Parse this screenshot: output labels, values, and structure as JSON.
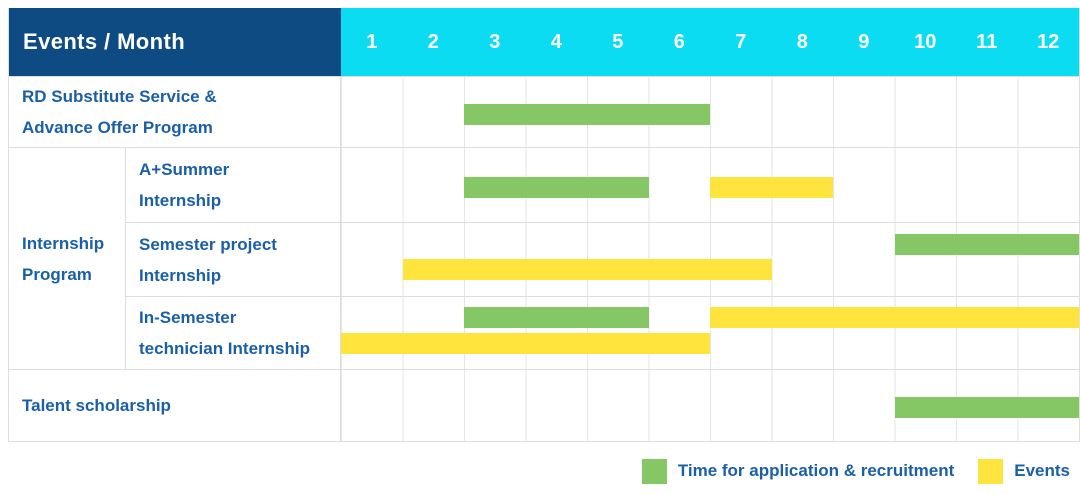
{
  "palette": {
    "header_bg": "#0D4B82",
    "month_header_bg": "#0BDCF2",
    "application_color": "#85C665",
    "event_color": "#FFE43E",
    "label_color": "#1B5FA6",
    "header_text_color": "#FFFFFF",
    "grid_line_color": "#E6E6E6",
    "border_color": "#DEDEDE"
  },
  "header": {
    "title": "Events / Month",
    "months": [
      "1",
      "2",
      "3",
      "4",
      "5",
      "6",
      "7",
      "8",
      "9",
      "10",
      "11",
      "12"
    ]
  },
  "group": {
    "label": "Internship\nProgram"
  },
  "rows": [
    {
      "label": "RD Substitute Service &\nAdvance Offer Program"
    },
    {
      "label": "A+Summer\nInternship"
    },
    {
      "label": "Semester project\nInternship"
    },
    {
      "label": "In-Semester\ntechnician Internship"
    },
    {
      "label": "Talent scholarship"
    }
  ],
  "legend": [
    {
      "kind": "application",
      "label": "Time for application & recruitment"
    },
    {
      "kind": "event",
      "label": "Events"
    }
  ],
  "chart_data": {
    "type": "bar",
    "subtype": "gantt-schedule",
    "title": "Events / Month",
    "x_label": "Month",
    "x_ticks": [
      1,
      2,
      3,
      4,
      5,
      6,
      7,
      8,
      9,
      10,
      11,
      12
    ],
    "x_range": [
      1,
      12
    ],
    "grid": true,
    "legend_position": "bottom-right",
    "rows": [
      {
        "label": "RD Substitute Service & Advance Offer Program",
        "group": null,
        "bars": [
          {
            "kind": "application",
            "start_month": 3,
            "end_month": 6,
            "line": "center"
          }
        ]
      },
      {
        "label": "A+Summer Internship",
        "group": "Internship Program",
        "bars": [
          {
            "kind": "application",
            "start_month": 3,
            "end_month": 5,
            "line": "center"
          },
          {
            "kind": "event",
            "start_month": 7,
            "end_month": 8,
            "line": "center"
          }
        ]
      },
      {
        "label": "Semester project Internship",
        "group": "Internship Program",
        "bars": [
          {
            "kind": "application",
            "start_month": 10,
            "end_month": 12,
            "line": "top"
          },
          {
            "kind": "event",
            "start_month": 2,
            "end_month": 7,
            "line": "bottom"
          }
        ]
      },
      {
        "label": "In-Semester technician Internship",
        "group": "Internship Program",
        "bars": [
          {
            "kind": "application",
            "start_month": 3,
            "end_month": 5,
            "line": "top"
          },
          {
            "kind": "event",
            "start_month": 7,
            "end_month": 12,
            "line": "top"
          },
          {
            "kind": "event",
            "start_month": 1,
            "end_month": 6,
            "line": "bottom"
          }
        ]
      },
      {
        "label": "Talent scholarship",
        "group": null,
        "bars": [
          {
            "kind": "application",
            "start_month": 10,
            "end_month": 12,
            "line": "center"
          }
        ]
      }
    ],
    "legend": [
      {
        "kind": "application",
        "label": "Time for application & recruitment"
      },
      {
        "kind": "event",
        "label": "Events"
      }
    ]
  }
}
